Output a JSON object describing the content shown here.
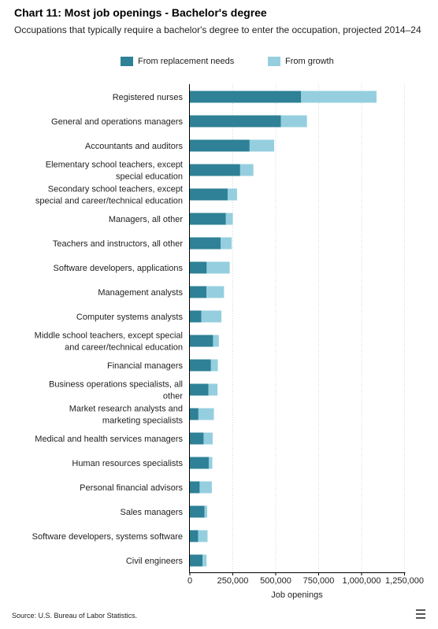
{
  "chart_data": {
    "type": "bar",
    "orientation": "horizontal",
    "stacked": true,
    "title": "Chart 11: Most job openings - Bachelor's degree",
    "subtitle": "Occupations that typically require a bachelor's degree to enter the occupation, projected 2014–24",
    "xlabel": "Job openings",
    "ylabel": "",
    "xlim": [
      0,
      1250000
    ],
    "x_ticks": [
      0,
      250000,
      500000,
      750000,
      1000000,
      1250000
    ],
    "x_tick_labels": [
      "0",
      "250,000",
      "500,000",
      "750,000",
      "1,000,000",
      "1,250,000"
    ],
    "grid": "vertical dotted",
    "legend_position": "top",
    "categories": [
      [
        "Registered nurses"
      ],
      [
        "General and operations managers"
      ],
      [
        "Accountants and auditors"
      ],
      [
        "Elementary school teachers, except",
        "special education"
      ],
      [
        "Secondary school teachers, except",
        "special and career/technical education"
      ],
      [
        "Managers, all other"
      ],
      [
        "Teachers and instructors, all other"
      ],
      [
        "Software developers, applications"
      ],
      [
        "Management analysts"
      ],
      [
        "Computer systems analysts"
      ],
      [
        "Middle school teachers, except special",
        "and career/technical education"
      ],
      [
        "Financial managers"
      ],
      [
        "Business operations specialists, all",
        "other"
      ],
      [
        "Market research analysts and",
        "marketing specialists"
      ],
      [
        "Medical and health services managers"
      ],
      [
        "Human resources specialists"
      ],
      [
        "Personal financial advisors"
      ],
      [
        "Sales managers"
      ],
      [
        "Software developers, systems software"
      ],
      [
        "Civil engineers"
      ]
    ],
    "series": [
      {
        "name": "From replacement needs",
        "color": "#2e8196",
        "values": [
          648000,
          530000,
          348000,
          293000,
          220000,
          210000,
          180000,
          98000,
          97000,
          67000,
          135000,
          123000,
          108000,
          50000,
          80000,
          110000,
          57000,
          85000,
          48000,
          74000
        ]
      },
      {
        "name": "From growth",
        "color": "#95cfdf",
        "values": [
          439000,
          152000,
          143000,
          77000,
          55000,
          40000,
          64000,
          134000,
          102000,
          117000,
          34000,
          40000,
          53000,
          90000,
          53000,
          21000,
          71000,
          16000,
          55000,
          23000
        ]
      }
    ]
  },
  "source": "Source: U.S. Bureau of Labor Statistics."
}
